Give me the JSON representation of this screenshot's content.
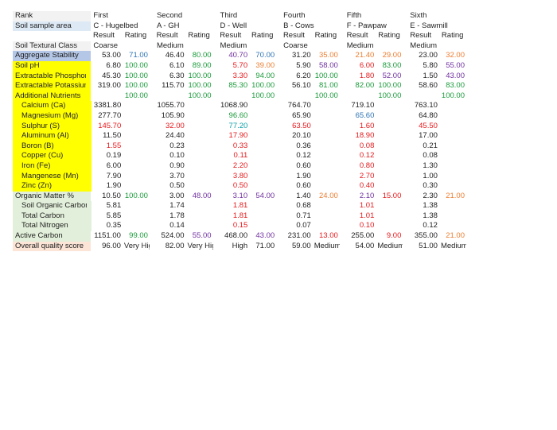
{
  "rank_label": "Rank",
  "sample_label": "Soil sample area",
  "textural_label": "Soil Textural Class",
  "ranks": [
    "First",
    "Second",
    "Third",
    "Fourth",
    "Fifth",
    "Sixth"
  ],
  "samples": [
    "C - Hugelbed",
    "A - GH",
    "D - Well",
    "B - Cows",
    "F - Pawpaw",
    "E - Sawmill"
  ],
  "result_header": "Result",
  "rating_header": "Rating",
  "textures": [
    "Coarse",
    "Medium",
    "Medium",
    "Coarse",
    "Medium",
    "Medium"
  ],
  "colors": {
    "black": "#222222",
    "red": "#e8181b",
    "green": "#1a9b3a",
    "blue": "#2e74b5",
    "purple": "#7030a0",
    "orange": "#ed7d31",
    "teal": "#0d9ea8",
    "label_blue": "#b4c7e7",
    "label_yellow": "#ffff00",
    "label_green": "#e2efda",
    "label_peach": "#fce4d6"
  },
  "rows": [
    {
      "label": "Aggregate Stability",
      "bg": "blue",
      "indent": false,
      "cells": [
        [
          "53.00",
          "black",
          "71.00",
          "blue"
        ],
        [
          "46.40",
          "black",
          "80.00",
          "green"
        ],
        [
          "40.70",
          "purple",
          "70.00",
          "blue"
        ],
        [
          "31.20",
          "black",
          "35.00",
          "orange"
        ],
        [
          "21.40",
          "orange",
          "29.00",
          "orange"
        ],
        [
          "23.00",
          "black",
          "32.00",
          "orange"
        ]
      ]
    },
    {
      "label": "Soil pH",
      "bg": "yellow",
      "indent": false,
      "cells": [
        [
          "6.80",
          "black",
          "100.00",
          "green"
        ],
        [
          "6.10",
          "black",
          "89.00",
          "green"
        ],
        [
          "5.70",
          "red",
          "39.00",
          "orange"
        ],
        [
          "5.90",
          "black",
          "58.00",
          "purple"
        ],
        [
          "6.00",
          "red",
          "83.00",
          "green"
        ],
        [
          "5.80",
          "black",
          "55.00",
          "purple"
        ]
      ]
    },
    {
      "label": "Extractable Phosphorus",
      "bg": "yellow",
      "indent": false,
      "cells": [
        [
          "45.30",
          "black",
          "100.00",
          "green"
        ],
        [
          "6.30",
          "black",
          "100.00",
          "green"
        ],
        [
          "3.30",
          "red",
          "94.00",
          "green"
        ],
        [
          "6.20",
          "black",
          "100.00",
          "green"
        ],
        [
          "1.80",
          "red",
          "52.00",
          "purple"
        ],
        [
          "1.50",
          "black",
          "43.00",
          "purple"
        ]
      ]
    },
    {
      "label": "Extractable Potassium",
      "bg": "yellow",
      "indent": false,
      "cells": [
        [
          "319.00",
          "black",
          "100.00",
          "green"
        ],
        [
          "115.70",
          "black",
          "100.00",
          "green"
        ],
        [
          "85.30",
          "green",
          "100.00",
          "green"
        ],
        [
          "56.10",
          "black",
          "81.00",
          "green"
        ],
        [
          "82.00",
          "green",
          "100.00",
          "green"
        ],
        [
          "58.60",
          "black",
          "83.00",
          "green"
        ]
      ]
    },
    {
      "label": "Additional Nutrients",
      "bg": "yellow",
      "indent": false,
      "cells": [
        [
          "",
          "black",
          "100.00",
          "green"
        ],
        [
          "",
          "black",
          "100.00",
          "green"
        ],
        [
          "",
          "black",
          "100.00",
          "green"
        ],
        [
          "",
          "black",
          "100.00",
          "green"
        ],
        [
          "",
          "black",
          "100.00",
          "green"
        ],
        [
          "",
          "black",
          "100.00",
          "green"
        ]
      ]
    },
    {
      "label": "Calcium (Ca)",
      "bg": "yellow",
      "indent": true,
      "cells": [
        [
          "3381.80",
          "black",
          "",
          ""
        ],
        [
          "1055.70",
          "black",
          "",
          ""
        ],
        [
          "1068.90",
          "black",
          "",
          ""
        ],
        [
          "764.70",
          "black",
          "",
          ""
        ],
        [
          "719.10",
          "black",
          "",
          ""
        ],
        [
          "763.10",
          "black",
          "",
          ""
        ]
      ]
    },
    {
      "label": "Magnesium (Mg)",
      "bg": "yellow",
      "indent": true,
      "cells": [
        [
          "277.70",
          "black",
          "",
          ""
        ],
        [
          "105.90",
          "black",
          "",
          ""
        ],
        [
          "96.60",
          "green",
          "",
          ""
        ],
        [
          "65.90",
          "black",
          "",
          ""
        ],
        [
          "65.60",
          "blue",
          "",
          ""
        ],
        [
          "64.80",
          "black",
          "",
          ""
        ]
      ]
    },
    {
      "label": "Sulphur (S)",
      "bg": "yellow",
      "indent": true,
      "cells": [
        [
          "145.70",
          "red",
          "",
          ""
        ],
        [
          "32.00",
          "red",
          "",
          ""
        ],
        [
          "77.20",
          "teal",
          "",
          ""
        ],
        [
          "63.50",
          "red",
          "",
          ""
        ],
        [
          "1.60",
          "red",
          "",
          ""
        ],
        [
          "45.50",
          "red",
          "",
          ""
        ]
      ]
    },
    {
      "label": "Aluminum (Al)",
      "bg": "yellow",
      "indent": true,
      "cells": [
        [
          "11.50",
          "black",
          "",
          ""
        ],
        [
          "24.40",
          "black",
          "",
          ""
        ],
        [
          "17.90",
          "red",
          "",
          ""
        ],
        [
          "20.10",
          "black",
          "",
          ""
        ],
        [
          "18.90",
          "red",
          "",
          ""
        ],
        [
          "17.00",
          "black",
          "",
          ""
        ]
      ]
    },
    {
      "label": "Boron (B)",
      "bg": "yellow",
      "indent": true,
      "cells": [
        [
          "1.55",
          "red",
          "",
          ""
        ],
        [
          "0.23",
          "black",
          "",
          ""
        ],
        [
          "0.33",
          "red",
          "",
          ""
        ],
        [
          "0.36",
          "black",
          "",
          ""
        ],
        [
          "0.08",
          "red",
          "",
          ""
        ],
        [
          "0.21",
          "black",
          "",
          ""
        ]
      ]
    },
    {
      "label": "Copper (Cu)",
      "bg": "yellow",
      "indent": true,
      "cells": [
        [
          "0.19",
          "black",
          "",
          ""
        ],
        [
          "0.10",
          "black",
          "",
          ""
        ],
        [
          "0.11",
          "red",
          "",
          ""
        ],
        [
          "0.12",
          "black",
          "",
          ""
        ],
        [
          "0.12",
          "red",
          "",
          ""
        ],
        [
          "0.08",
          "black",
          "",
          ""
        ]
      ]
    },
    {
      "label": "Iron (Fe)",
      "bg": "yellow",
      "indent": true,
      "cells": [
        [
          "6.00",
          "black",
          "",
          ""
        ],
        [
          "0.90",
          "black",
          "",
          ""
        ],
        [
          "2.20",
          "red",
          "",
          ""
        ],
        [
          "0.60",
          "black",
          "",
          ""
        ],
        [
          "0.80",
          "red",
          "",
          ""
        ],
        [
          "1.30",
          "black",
          "",
          ""
        ]
      ]
    },
    {
      "label": "Mangenese (Mn)",
      "bg": "yellow",
      "indent": true,
      "cells": [
        [
          "7.90",
          "black",
          "",
          ""
        ],
        [
          "3.70",
          "black",
          "",
          ""
        ],
        [
          "3.80",
          "red",
          "",
          ""
        ],
        [
          "1.90",
          "black",
          "",
          ""
        ],
        [
          "2.70",
          "red",
          "",
          ""
        ],
        [
          "1.00",
          "black",
          "",
          ""
        ]
      ]
    },
    {
      "label": "Zinc (Zn)",
      "bg": "yellow",
      "indent": true,
      "cells": [
        [
          "1.90",
          "black",
          "",
          ""
        ],
        [
          "0.50",
          "black",
          "",
          ""
        ],
        [
          "0.50",
          "red",
          "",
          ""
        ],
        [
          "0.60",
          "black",
          "",
          ""
        ],
        [
          "0.40",
          "red",
          "",
          ""
        ],
        [
          "0.30",
          "black",
          "",
          ""
        ]
      ]
    },
    {
      "label": "Organic Matter %",
      "bg": "green",
      "indent": false,
      "cells": [
        [
          "10.50",
          "black",
          "100.00",
          "green"
        ],
        [
          "3.00",
          "black",
          "48.00",
          "purple"
        ],
        [
          "3.10",
          "purple",
          "54.00",
          "purple"
        ],
        [
          "1.40",
          "black",
          "24.00",
          "orange"
        ],
        [
          "2.10",
          "purple",
          "15.00",
          "red"
        ],
        [
          "2.30",
          "black",
          "21.00",
          "orange"
        ]
      ]
    },
    {
      "label": "Soil Organic Carbon",
      "bg": "green",
      "indent": true,
      "cells": [
        [
          "5.81",
          "black",
          "",
          ""
        ],
        [
          "1.74",
          "black",
          "",
          ""
        ],
        [
          "1.81",
          "red",
          "",
          ""
        ],
        [
          "0.68",
          "black",
          "",
          ""
        ],
        [
          "1.01",
          "red",
          "",
          ""
        ],
        [
          "1.38",
          "black",
          "",
          ""
        ]
      ]
    },
    {
      "label": "Total Carbon",
      "bg": "green",
      "indent": true,
      "cells": [
        [
          "5.85",
          "black",
          "",
          ""
        ],
        [
          "1.78",
          "black",
          "",
          ""
        ],
        [
          "1.81",
          "red",
          "",
          ""
        ],
        [
          "0.71",
          "black",
          "",
          ""
        ],
        [
          "1.01",
          "red",
          "",
          ""
        ],
        [
          "1.38",
          "black",
          "",
          ""
        ]
      ]
    },
    {
      "label": "Total Nitrogen",
      "bg": "green",
      "indent": true,
      "cells": [
        [
          "0.35",
          "black",
          "",
          ""
        ],
        [
          "0.14",
          "black",
          "",
          ""
        ],
        [
          "0.15",
          "red",
          "",
          ""
        ],
        [
          "0.07",
          "black",
          "",
          ""
        ],
        [
          "0.10",
          "red",
          "",
          ""
        ],
        [
          "0.12",
          "black",
          "",
          ""
        ]
      ]
    },
    {
      "label": "Active Carbon",
      "bg": "green",
      "indent": false,
      "cells": [
        [
          "1151.00",
          "black",
          "99.00",
          "green"
        ],
        [
          "524.00",
          "black",
          "55.00",
          "purple"
        ],
        [
          "468.00",
          "black",
          "43.00",
          "purple"
        ],
        [
          "231.00",
          "black",
          "13.00",
          "red"
        ],
        [
          "255.00",
          "black",
          "9.00",
          "red"
        ],
        [
          "355.00",
          "black",
          "21.00",
          "orange"
        ]
      ]
    },
    {
      "label": "Overall quality score",
      "bg": "peach",
      "indent": false,
      "cells": [
        [
          "96.00",
          "black",
          "Very High",
          "black"
        ],
        [
          "82.00",
          "black",
          "Very High",
          "black"
        ],
        [
          "High",
          "black",
          "71.00",
          "black"
        ],
        [
          "59.00",
          "black",
          "Medium",
          "black"
        ],
        [
          "54.00",
          "black",
          "Medium",
          "black"
        ],
        [
          "51.00",
          "black",
          "Medium",
          "black"
        ]
      ]
    }
  ]
}
